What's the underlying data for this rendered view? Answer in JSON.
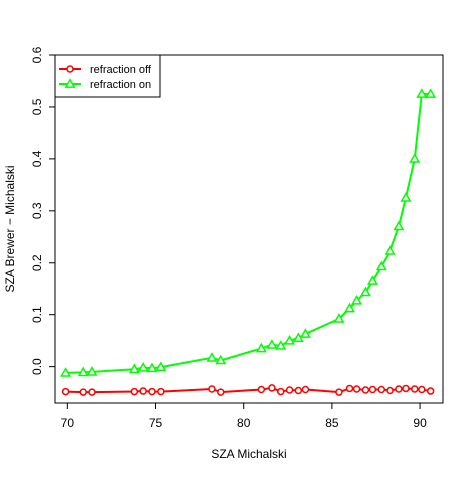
{
  "chart_data": {
    "type": "line",
    "title": "",
    "xlabel": "SZA Michalski",
    "ylabel": "SZA Brewer − Michalski",
    "xlim": [
      69.3,
      91.3
    ],
    "ylim": [
      -0.07,
      0.6
    ],
    "xticks": [
      70,
      75,
      80,
      85,
      90
    ],
    "yticks": [
      0.0,
      0.1,
      0.2,
      0.3,
      0.4,
      0.5,
      0.6
    ],
    "ytick_labels": [
      "0.0",
      "0.1",
      "0.2",
      "0.3",
      "0.4",
      "0.5",
      "0.6"
    ],
    "grid": false,
    "legend_position": "top-left",
    "series": [
      {
        "name": "refraction off",
        "color": "#ff0000",
        "marker": "circle",
        "x": [
          69.9,
          70.9,
          71.4,
          73.8,
          74.3,
          74.8,
          75.3,
          78.2,
          78.7,
          81.0,
          81.6,
          82.1,
          82.6,
          83.1,
          83.5,
          85.4,
          86.0,
          86.4,
          86.9,
          87.3,
          87.8,
          88.3,
          88.8,
          89.2,
          89.7,
          90.1,
          90.6
        ],
        "y": [
          -0.048,
          -0.049,
          -0.049,
          -0.048,
          -0.047,
          -0.048,
          -0.048,
          -0.043,
          -0.049,
          -0.044,
          -0.041,
          -0.048,
          -0.045,
          -0.046,
          -0.044,
          -0.049,
          -0.042,
          -0.043,
          -0.045,
          -0.044,
          -0.044,
          -0.046,
          -0.043,
          -0.042,
          -0.043,
          -0.044,
          -0.047
        ]
      },
      {
        "name": "refraction on",
        "color": "#00ff00",
        "marker": "triangle",
        "x": [
          69.9,
          70.9,
          71.4,
          73.8,
          74.3,
          74.8,
          75.3,
          78.2,
          78.7,
          81.0,
          81.6,
          82.1,
          82.6,
          83.1,
          83.5,
          85.4,
          86.0,
          86.4,
          86.9,
          87.3,
          87.8,
          88.3,
          88.8,
          89.2,
          89.7,
          90.1,
          90.6
        ],
        "y": [
          -0.012,
          -0.011,
          -0.01,
          -0.005,
          -0.002,
          -0.003,
          -0.001,
          0.017,
          0.012,
          0.035,
          0.042,
          0.04,
          0.05,
          0.055,
          0.063,
          0.092,
          0.112,
          0.127,
          0.143,
          0.165,
          0.193,
          0.223,
          0.27,
          0.325,
          0.4,
          0.525,
          0.525
        ]
      }
    ]
  }
}
